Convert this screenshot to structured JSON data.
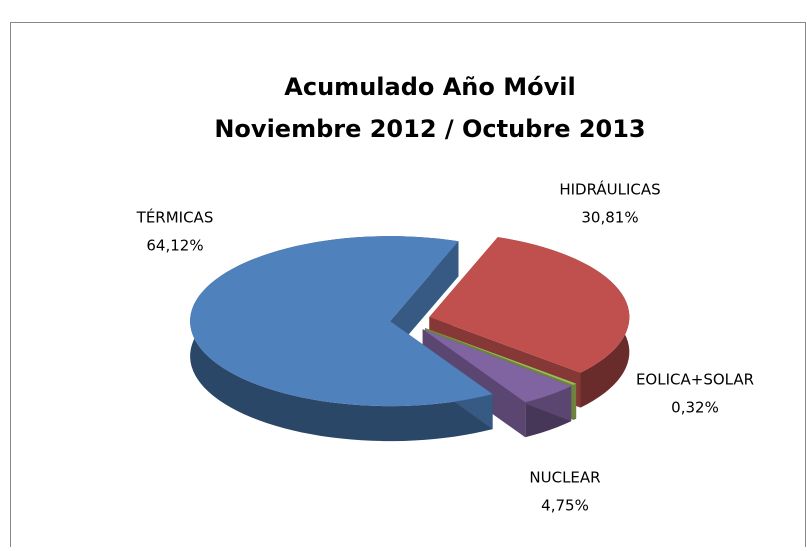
{
  "chart_data": {
    "type": "pie",
    "title": "Acumulado Año Móvil",
    "subtitle": "Noviembre 2012 / Octubre 2013",
    "categories": [
      "HIDRÁULICAS",
      "EOLICA+SOLAR",
      "NUCLEAR",
      "TÉRMICAS"
    ],
    "values": [
      30.81,
      0.32,
      4.75,
      64.12
    ],
    "value_labels": [
      "30,81%",
      "0,32%",
      "4,75%",
      "64,12%"
    ],
    "colors": [
      "#c0504d",
      "#9bbb59",
      "#8064a2",
      "#4f81bd"
    ],
    "three_d": true,
    "exploded": true
  }
}
